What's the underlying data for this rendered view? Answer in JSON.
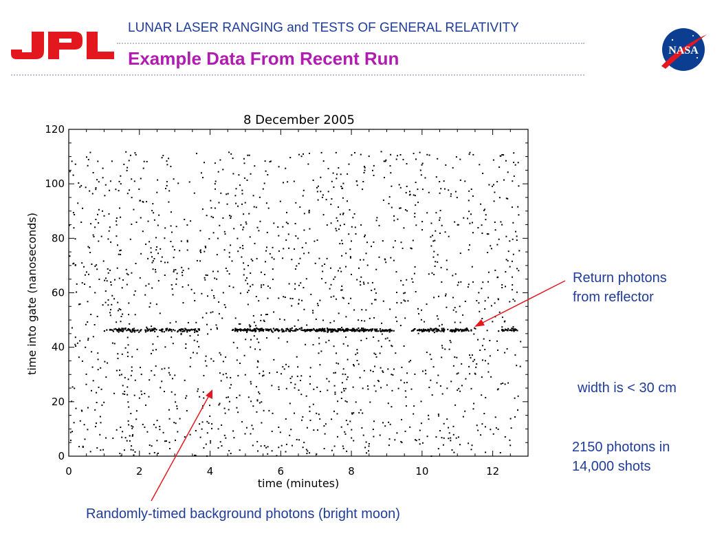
{
  "header": {
    "title": "LUNAR LASER RANGING and TESTS OF GENERAL RELATIVITY",
    "subtitle": "Example Data From Recent Run"
  },
  "logos": {
    "left": {
      "text": "JPL",
      "color": "#e3181e"
    },
    "right": {
      "text": "NASA",
      "color": "#0b3d91"
    }
  },
  "colors": {
    "accent_title": "#1f3c9a",
    "accent_subtitle": "#b01cb0",
    "annotation_arrow": "#e3181e",
    "note_text": "#1f3c9a"
  },
  "chart_data": {
    "type": "scatter",
    "title": "8 December 2005",
    "xlabel": "time (minutes)",
    "ylabel": "time into gate (nanoseconds)",
    "xlim": [
      0,
      13
    ],
    "ylim": [
      0,
      120
    ],
    "xticks": [
      "0",
      "2",
      "4",
      "6",
      "8",
      "10",
      "12"
    ],
    "yticks": [
      "0",
      "20",
      "40",
      "60",
      "80",
      "100",
      "120"
    ],
    "grid": false,
    "total_photons": 2150,
    "background": {
      "description": "uniformly distributed background photons",
      "x_range": [
        0,
        12.8
      ],
      "y_range": [
        0,
        112
      ],
      "approx_count": 1700
    },
    "return_band": {
      "y_center": 46.3,
      "y_spread": 1.0,
      "segments": [
        {
          "x": [
            1.0,
            3.7
          ],
          "weight": 0.7
        },
        {
          "x": [
            4.6,
            9.2
          ],
          "weight": 1.0
        },
        {
          "x": [
            9.7,
            11.4
          ],
          "weight": 0.9
        },
        {
          "x": [
            12.1,
            12.7
          ],
          "weight": 0.7
        }
      ]
    }
  },
  "annotations": {
    "return_photons": "Return photons\nfrom reflector",
    "width": "width is < 30 cm",
    "photon_count": "2150 photons in\n14,000 shots",
    "background": "Randomly-timed background photons (bright moon)"
  }
}
